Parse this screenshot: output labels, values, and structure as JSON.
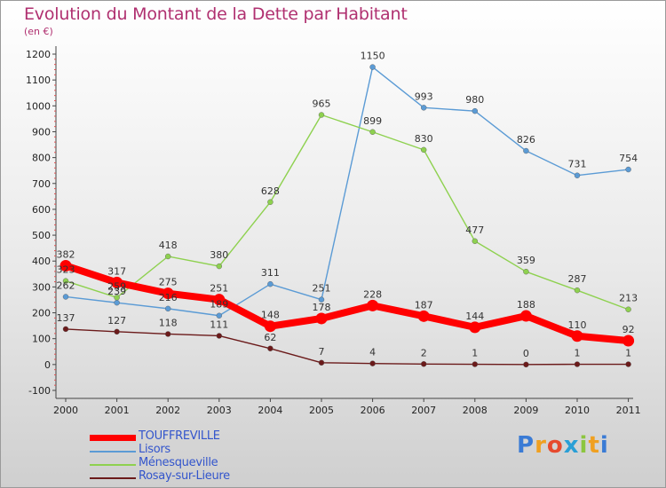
{
  "title": "Evolution du Montant de la Dette par Habitant",
  "subtitle": "(en €)",
  "logo": {
    "letters": [
      {
        "ch": "P",
        "color": "#3a7bd5"
      },
      {
        "ch": "r",
        "color": "#f0a020"
      },
      {
        "ch": "o",
        "color": "#e64a2e"
      },
      {
        "ch": "x",
        "color": "#2a9fd6"
      },
      {
        "ch": "i",
        "color": "#8cc63f"
      },
      {
        "ch": "t",
        "color": "#f0a020"
      },
      {
        "ch": "i",
        "color": "#3a7bd5"
      }
    ]
  },
  "chart_data": {
    "type": "line",
    "title": "Evolution du Montant de la Dette par Habitant",
    "ylabel": "(en €)",
    "x": [
      "2000",
      "2001",
      "2002",
      "2003",
      "2004",
      "2005",
      "2006",
      "2007",
      "2008",
      "2009",
      "2010",
      "2011"
    ],
    "ylim": [
      -100,
      1200
    ],
    "yticks": [
      -100,
      0,
      100,
      200,
      300,
      400,
      500,
      600,
      700,
      800,
      900,
      1000,
      1100,
      1200
    ],
    "grid": false,
    "legend": "bottom-left",
    "series": [
      {
        "name": "Lisors",
        "color": "#5b9bd5",
        "values": [
          262,
          239,
          216,
          189,
          311,
          251,
          1150,
          993,
          980,
          826,
          731,
          754
        ],
        "labels": [
          "262",
          "239",
          "216",
          "189",
          "311",
          "251",
          "1150",
          "993",
          "980",
          "826",
          "731",
          "754"
        ]
      },
      {
        "name": "Ménesqueville",
        "color": "#8ed14f",
        "values": [
          323,
          259,
          418,
          380,
          628,
          965,
          899,
          830,
          477,
          359,
          287,
          213
        ],
        "labels": [
          "323",
          "259",
          "418",
          "380",
          "628",
          "965",
          "899",
          "830",
          "477",
          "359",
          "287",
          "213"
        ]
      },
      {
        "name": "Rosay-sur-Lieure",
        "color": "#6b1a1a",
        "values": [
          137,
          127,
          118,
          111,
          62,
          7,
          4,
          2,
          1,
          0,
          1,
          1
        ],
        "labels": [
          "137",
          "127",
          "118",
          "111",
          "62",
          "7",
          "4",
          "2",
          "1",
          "0",
          "1",
          "1"
        ]
      },
      {
        "name": "TOUFFREVILLE",
        "color": "#ff0000",
        "values": [
          382,
          317,
          275,
          251,
          148,
          178,
          228,
          187,
          144,
          188,
          110,
          92
        ],
        "labels": [
          "382",
          "317",
          "275",
          "251",
          "148",
          "178",
          "228",
          "187",
          "144",
          "188",
          "110",
          "92"
        ]
      }
    ]
  }
}
